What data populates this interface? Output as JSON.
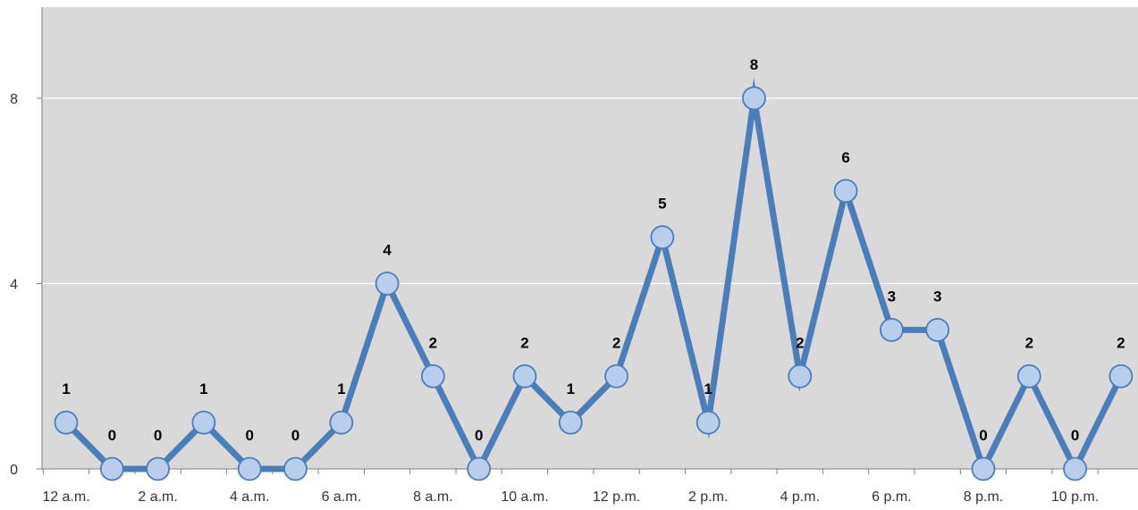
{
  "chart_data": {
    "type": "line",
    "title": "",
    "xlabel": "",
    "ylabel": "",
    "ylim": [
      0,
      10
    ],
    "yticks": [
      "0",
      "4",
      "8"
    ],
    "ytick_values": [
      0,
      4,
      8
    ],
    "grid": "horizontal",
    "legend": "none",
    "categories": [
      "12 a.m.",
      "1 a.m.",
      "2 a.m.",
      "3 a.m.",
      "4 a.m.",
      "5 a.m.",
      "6 a.m.",
      "7 a.m.",
      "8 a.m.",
      "9 a.m.",
      "10 a.m.",
      "11 a.m.",
      "12 p.m.",
      "1 p.m.",
      "2 p.m.",
      "3 p.m.",
      "4 p.m.",
      "5 p.m.",
      "6 p.m.",
      "7 p.m.",
      "8 p.m.",
      "9 p.m.",
      "10 p.m.",
      "11 p.m."
    ],
    "xtick_labels": [
      "12 a.m.",
      "2 a.m.",
      "4 a.m.",
      "6 a.m.",
      "8 a.m.",
      "10 a.m.",
      "12 p.m.",
      "2 p.m.",
      "4 p.m.",
      "6 p.m.",
      "8 p.m.",
      "10 p.m."
    ],
    "series": [
      {
        "values": [
          1,
          0,
          0,
          1,
          0,
          0,
          1,
          4,
          2,
          0,
          2,
          1,
          2,
          5,
          1,
          8,
          2,
          6,
          3,
          3,
          0,
          2,
          0,
          2
        ]
      }
    ],
    "colors": {
      "plot_background": "#d9d9d9",
      "gridline": "#ffffff",
      "axis": "#7f7f7f",
      "line": "#4a7ebb",
      "marker_fill": "#b9cdec",
      "marker_stroke": "#4a7ebb"
    }
  }
}
